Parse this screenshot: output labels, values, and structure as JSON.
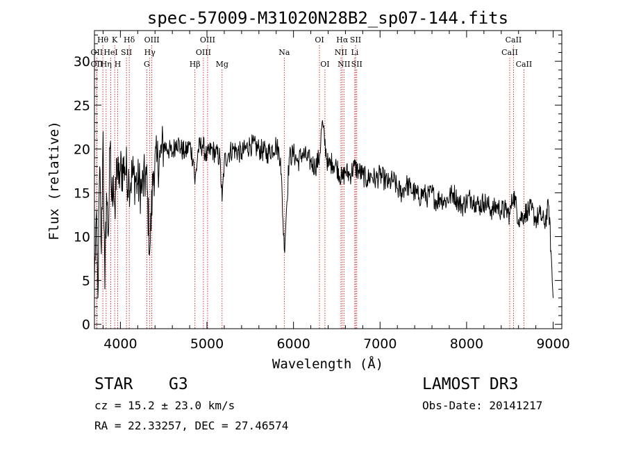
{
  "chart_data": {
    "type": "line",
    "title": "spec-57009-M31020N28B2_sp07-144.fits",
    "xlabel": "Wavelength (Å)",
    "ylabel": "Flux (relative)",
    "xlim": [
      3700,
      9100
    ],
    "ylim": [
      -0.5,
      33.5
    ],
    "x_ticks": [
      4000,
      5000,
      6000,
      7000,
      8000,
      9000
    ],
    "x_tick_labels": [
      "4000",
      "5000",
      "6000",
      "7000",
      "8000",
      "9000"
    ],
    "y_ticks": [
      0,
      5,
      10,
      15,
      20,
      25,
      30
    ],
    "y_tick_labels": [
      "0",
      "5",
      "10",
      "15",
      "20",
      "25",
      "30"
    ],
    "line_color": "#000000",
    "marker_color": "#cc0000",
    "series": [
      {
        "name": "spectrum",
        "x": [
          3700,
          3720,
          3740,
          3760,
          3780,
          3800,
          3820,
          3840,
          3860,
          3880,
          3900,
          3920,
          3940,
          3960,
          3980,
          4000,
          4050,
          4100,
          4150,
          4200,
          4250,
          4300,
          4340,
          4380,
          4420,
          4460,
          4500,
          4550,
          4600,
          4650,
          4700,
          4750,
          4800,
          4850,
          4861,
          4900,
          4950,
          5000,
          5050,
          5100,
          5150,
          5175,
          5200,
          5250,
          5300,
          5400,
          5500,
          5600,
          5700,
          5800,
          5850,
          5893,
          5950,
          6000,
          6050,
          6100,
          6150,
          6200,
          6250,
          6300,
          6330,
          6400,
          6450,
          6500,
          6563,
          6600,
          6650,
          6700,
          6750,
          6800,
          6850,
          6900,
          6950,
          7000,
          7050,
          7100,
          7150,
          7200,
          7250,
          7300,
          7350,
          7400,
          7450,
          7500,
          7550,
          7600,
          7650,
          7700,
          7750,
          7800,
          7850,
          7900,
          7950,
          8000,
          8050,
          8100,
          8150,
          8200,
          8250,
          8300,
          8350,
          8400,
          8450,
          8500,
          8542,
          8600,
          8662,
          8700,
          8750,
          8800,
          8850,
          8900,
          8950,
          9000
        ],
        "y": [
          5.0,
          12.0,
          3.0,
          18.0,
          8.0,
          22.0,
          4.0,
          15.0,
          10.0,
          20.0,
          14.0,
          17.0,
          12.0,
          19.0,
          16.0,
          17.5,
          18.0,
          16.5,
          17.0,
          16.0,
          15.5,
          17.0,
          8.5,
          17.5,
          18.5,
          19.0,
          20.5,
          20.0,
          19.5,
          21.0,
          20.0,
          19.5,
          20.5,
          18.5,
          16.0,
          20.0,
          20.5,
          19.0,
          20.0,
          19.5,
          19.0,
          14.0,
          18.5,
          19.5,
          20.0,
          19.5,
          20.5,
          20.0,
          19.5,
          20.5,
          19.0,
          8.5,
          19.0,
          19.5,
          18.5,
          19.5,
          19.0,
          18.5,
          18.0,
          19.0,
          23.0,
          18.0,
          18.5,
          18.0,
          16.5,
          17.5,
          17.0,
          18.0,
          17.5,
          17.0,
          16.5,
          17.0,
          16.5,
          17.0,
          16.5,
          16.0,
          16.5,
          15.5,
          15.0,
          16.0,
          15.5,
          15.0,
          14.5,
          15.0,
          14.5,
          15.0,
          14.0,
          14.5,
          14.0,
          14.5,
          15.0,
          14.0,
          13.5,
          14.0,
          14.5,
          14.0,
          13.5,
          14.0,
          13.5,
          13.0,
          13.5,
          13.0,
          13.0,
          12.5,
          15.0,
          12.0,
          12.5,
          13.0,
          13.0,
          12.0,
          12.5,
          11.5,
          13.5,
          3.0
        ]
      }
    ],
    "line_markers": [
      {
        "label": "Hθ",
        "x": 3797,
        "row": 1
      },
      {
        "label": "K",
        "x": 3934,
        "row": 1
      },
      {
        "label": "Hδ",
        "x": 4102,
        "row": 1
      },
      {
        "label": "OIII",
        "x": 4363,
        "row": 1
      },
      {
        "label": "OIII",
        "x": 5007,
        "row": 1
      },
      {
        "label": "OI",
        "x": 6300,
        "row": 1
      },
      {
        "label": "Hα",
        "x": 6563,
        "row": 1
      },
      {
        "label": "SII",
        "x": 6717,
        "row": 1
      },
      {
        "label": "CaII",
        "x": 8542,
        "row": 1
      },
      {
        "label": "OII",
        "x": 3727,
        "row": 2
      },
      {
        "label": "HeI",
        "x": 3889,
        "row": 2
      },
      {
        "label": "SII",
        "x": 4070,
        "row": 2
      },
      {
        "label": "Hγ",
        "x": 4340,
        "row": 2
      },
      {
        "label": "OIII",
        "x": 4959,
        "row": 2
      },
      {
        "label": "Na",
        "x": 5893,
        "row": 2
      },
      {
        "label": "NII",
        "x": 6548,
        "row": 2
      },
      {
        "label": "Li",
        "x": 6708,
        "row": 2
      },
      {
        "label": "CaII",
        "x": 8498,
        "row": 2
      },
      {
        "label": "OII",
        "x": 3727,
        "row": 3
      },
      {
        "label": "Hη",
        "x": 3835,
        "row": 3
      },
      {
        "label": "H",
        "x": 3969,
        "row": 3
      },
      {
        "label": "G",
        "x": 4305,
        "row": 3
      },
      {
        "label": "Hβ",
        "x": 4861,
        "row": 3
      },
      {
        "label": "Mg",
        "x": 5175,
        "row": 3
      },
      {
        "label": "OI",
        "x": 6363,
        "row": 3
      },
      {
        "label": "NII",
        "x": 6583,
        "row": 3
      },
      {
        "label": "SII",
        "x": 6731,
        "row": 3
      },
      {
        "label": "CaII",
        "x": 8662,
        "row": 3
      }
    ]
  },
  "footer": {
    "object_class": "STAR",
    "subclass": "G3",
    "survey": "LAMOST DR3",
    "velocity": "cz = 15.2 ± 23.0 km/s",
    "obs_date": "Obs-Date: 20141217",
    "coordinates": "RA =  22.33257, DEC =  27.46574"
  }
}
